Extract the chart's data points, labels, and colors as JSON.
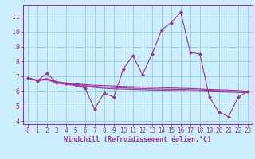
{
  "background_color": "#cceeff",
  "plot_bg_color": "#cceeff",
  "grid_color": "#99cccc",
  "line_color": "#993399",
  "marker_color": "#993399",
  "xlabel": "Windchill (Refroidissement éolien,°C)",
  "xlim": [
    -0.5,
    23.5
  ],
  "ylim": [
    3.8,
    11.8
  ],
  "yticks": [
    4,
    5,
    6,
    7,
    8,
    9,
    10,
    11
  ],
  "xticks": [
    0,
    1,
    2,
    3,
    4,
    5,
    6,
    7,
    8,
    9,
    10,
    11,
    12,
    13,
    14,
    15,
    16,
    17,
    18,
    19,
    20,
    21,
    22,
    23
  ],
  "series1": [
    6.9,
    6.7,
    7.2,
    6.6,
    6.5,
    6.4,
    6.2,
    4.8,
    5.9,
    5.6,
    7.5,
    8.4,
    7.1,
    8.5,
    10.1,
    10.6,
    11.3,
    8.6,
    8.5,
    5.6,
    4.6,
    4.3,
    5.6,
    6.0
  ],
  "series2": [
    6.9,
    6.75,
    6.85,
    6.65,
    6.55,
    6.5,
    6.45,
    6.4,
    6.38,
    6.35,
    6.32,
    6.3,
    6.28,
    6.26,
    6.24,
    6.22,
    6.2,
    6.18,
    6.15,
    6.12,
    6.1,
    6.08,
    6.05,
    6.0
  ],
  "series3": [
    6.9,
    6.72,
    6.82,
    6.6,
    6.5,
    6.45,
    6.38,
    6.32,
    6.28,
    6.25,
    6.22,
    6.2,
    6.18,
    6.16,
    6.14,
    6.13,
    6.12,
    6.1,
    6.08,
    6.06,
    6.04,
    6.02,
    6.0,
    5.95
  ],
  "series4": [
    6.9,
    6.7,
    6.78,
    6.56,
    6.45,
    6.4,
    6.32,
    6.25,
    6.2,
    6.16,
    6.14,
    6.12,
    6.1,
    6.08,
    6.06,
    6.05,
    6.04,
    6.02,
    6.0,
    5.98,
    5.96,
    5.94,
    5.92,
    5.9
  ]
}
